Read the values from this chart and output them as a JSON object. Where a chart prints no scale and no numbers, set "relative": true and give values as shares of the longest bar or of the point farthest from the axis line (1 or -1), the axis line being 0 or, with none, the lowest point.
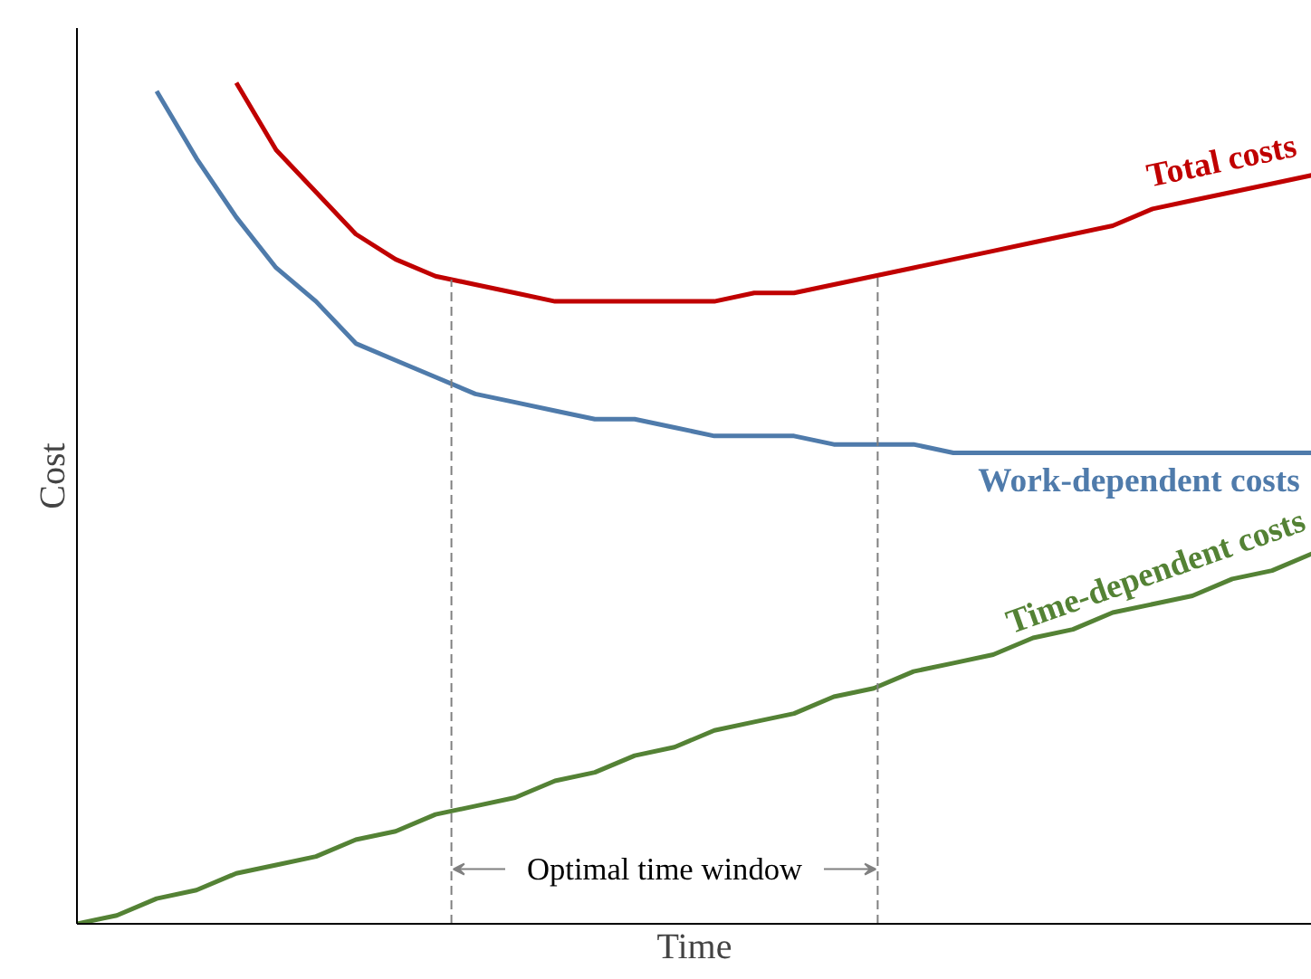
{
  "chart_data": {
    "type": "line",
    "relative": true,
    "xlabel": "Time",
    "ylabel": "Cost",
    "tick_labels": false,
    "line_style": "solid",
    "marker": "none",
    "categories": [
      null,
      null,
      null,
      null,
      null,
      null,
      null,
      null,
      null,
      null,
      null,
      null,
      null,
      null,
      null,
      null,
      null,
      null,
      null,
      null,
      null,
      null,
      null,
      null,
      null,
      null,
      null,
      null,
      null,
      null,
      null,
      null
    ],
    "series": [
      {
        "name": "Total costs",
        "color": "#c00000",
        "values": [
          null,
          null,
          null,
          null,
          1.0,
          0.92,
          0.87,
          0.82,
          0.79,
          0.77,
          0.76,
          0.75,
          0.74,
          0.74,
          0.74,
          0.74,
          0.74,
          0.75,
          0.75,
          0.76,
          0.77,
          0.78,
          0.79,
          0.8,
          0.81,
          0.82,
          0.83,
          0.85,
          0.86,
          0.87,
          0.88,
          0.89
        ]
      },
      {
        "name": "Work-dependent costs",
        "color": "#4f7bab",
        "values": [
          null,
          null,
          0.99,
          0.91,
          0.84,
          0.78,
          0.74,
          0.69,
          0.67,
          0.65,
          0.63,
          0.62,
          0.61,
          0.6,
          0.6,
          0.59,
          0.58,
          0.58,
          0.58,
          0.57,
          0.57,
          0.57,
          0.56,
          0.56,
          0.56,
          0.56,
          0.56,
          0.56,
          0.56,
          0.56,
          0.56,
          0.56
        ]
      },
      {
        "name": "Time-dependent costs",
        "color": "#548235",
        "values": [
          0,
          0.01,
          0.03,
          0.04,
          0.06,
          0.07,
          0.08,
          0.1,
          0.11,
          0.13,
          0.14,
          0.15,
          0.17,
          0.18,
          0.2,
          0.21,
          0.23,
          0.24,
          0.25,
          0.27,
          0.28,
          0.3,
          0.31,
          0.32,
          0.34,
          0.35,
          0.37,
          0.38,
          0.39,
          0.41,
          0.42,
          0.44
        ]
      }
    ],
    "annotations": [
      "Optimal time window"
    ]
  }
}
